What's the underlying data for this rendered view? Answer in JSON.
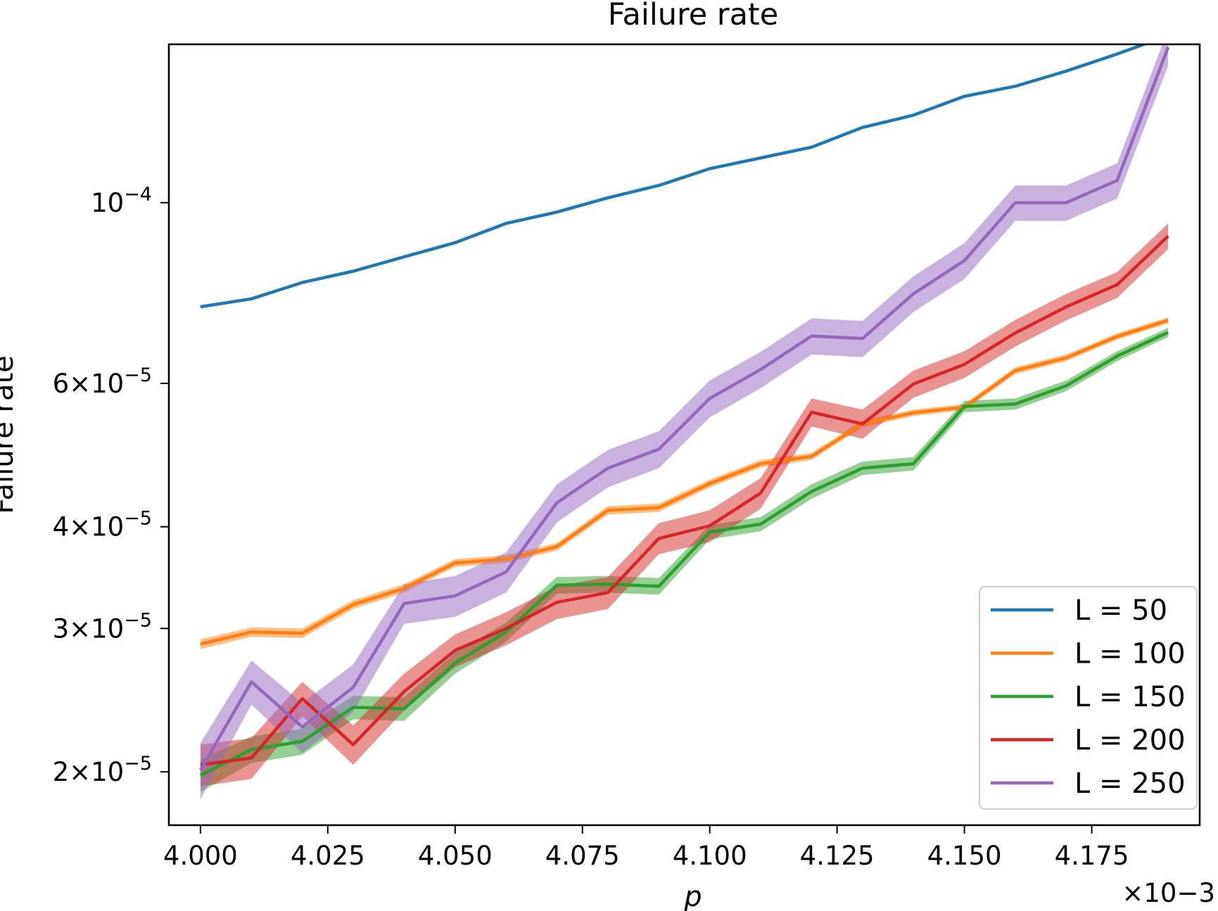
{
  "chart_data": {
    "type": "line",
    "title": "Failure rate",
    "xlabel": "p",
    "ylabel": "Failure rate",
    "x_offset_text": "×10−3",
    "yscale": "log",
    "xlim": [
      3.9938,
      4.1962
    ],
    "ylim": [
      1.72e-05,
      0.0001565
    ],
    "grid": false,
    "legend_position": "lower right",
    "x": [
      4.0,
      4.01,
      4.02,
      4.03,
      4.04,
      4.05,
      4.06,
      4.07,
      4.08,
      4.09,
      4.1,
      4.11,
      4.12,
      4.13,
      4.14,
      4.15,
      4.16,
      4.17,
      4.18,
      4.19
    ],
    "x_ticks": [
      {
        "value": 4.0,
        "label": "4.000"
      },
      {
        "value": 4.025,
        "label": "4.025"
      },
      {
        "value": 4.05,
        "label": "4.050"
      },
      {
        "value": 4.075,
        "label": "4.075"
      },
      {
        "value": 4.1,
        "label": "4.100"
      },
      {
        "value": 4.125,
        "label": "4.125"
      },
      {
        "value": 4.15,
        "label": "4.150"
      },
      {
        "value": 4.175,
        "label": "4.175"
      }
    ],
    "y_ticks": [
      {
        "value": 0.0001,
        "mantissa": "",
        "base": "10",
        "exponent": "−4"
      },
      {
        "value": 6e-05,
        "mantissa": "6",
        "base": "10",
        "exponent": "−5"
      },
      {
        "value": 4e-05,
        "mantissa": "4",
        "base": "10",
        "exponent": "−5"
      },
      {
        "value": 3e-05,
        "mantissa": "3",
        "base": "10",
        "exponent": "−5"
      },
      {
        "value": 2e-05,
        "mantissa": "2",
        "base": "10",
        "exponent": "−5"
      }
    ],
    "series": [
      {
        "name": "L = 50",
        "color": "#1f77b4",
        "values": [
          7.45e-05,
          7.62e-05,
          7.98e-05,
          8.24e-05,
          8.58e-05,
          8.93e-05,
          9.43e-05,
          9.74e-05,
          0.0001014,
          0.000105,
          0.0001101,
          0.0001135,
          0.000117,
          0.0001237,
          0.0001281,
          0.0001351,
          0.000139,
          0.0001451,
          0.0001523,
          0.0001604
        ],
        "band": [
          1e-07,
          1e-07,
          1e-07,
          1e-07,
          1e-07,
          1e-07,
          1e-07,
          1e-07,
          1e-07,
          1e-07,
          1e-07,
          1e-07,
          1e-07,
          1e-07,
          1e-07,
          1e-07,
          1e-07,
          1e-07,
          1e-07,
          1e-07
        ]
      },
      {
        "name": "L = 100",
        "color": "#ff7f0e",
        "values": [
          2.87e-05,
          2.97e-05,
          2.96e-05,
          3.21e-05,
          3.36e-05,
          3.61e-05,
          3.65e-05,
          3.78e-05,
          4.19e-05,
          4.22e-05,
          4.52e-05,
          4.78e-05,
          4.88e-05,
          5.35e-05,
          5.52e-05,
          5.61e-05,
          6.22e-05,
          6.45e-05,
          6.85e-05,
          7.17e-05
        ],
        "band": [
          4e-07,
          4e-07,
          4e-07,
          4e-07,
          4e-07,
          4e-07,
          4e-07,
          4e-07,
          5e-07,
          5e-07,
          5e-07,
          5e-07,
          5e-07,
          5e-07,
          5e-07,
          5e-07,
          6e-07,
          6e-07,
          6e-07,
          6e-07
        ]
      },
      {
        "name": "L = 150",
        "color": "#2ca02c",
        "values": [
          1.98e-05,
          2.13e-05,
          2.18e-05,
          2.4e-05,
          2.39e-05,
          2.72e-05,
          2.97e-05,
          3.39e-05,
          3.4e-05,
          3.38e-05,
          3.94e-05,
          4.03e-05,
          4.42e-05,
          4.72e-05,
          4.78e-05,
          5.62e-05,
          5.66e-05,
          5.96e-05,
          6.48e-05,
          6.93e-05
        ],
        "band": [
          9e-07,
          8e-07,
          8e-07,
          8e-07,
          8e-07,
          8e-07,
          8e-07,
          8e-07,
          8e-07,
          8e-07,
          8e-07,
          8e-07,
          9e-07,
          9e-07,
          9e-07,
          9e-07,
          9e-07,
          9e-07,
          9e-07,
          9e-07
        ]
      },
      {
        "name": "L = 200",
        "color": "#d62728",
        "values": [
          2.04e-05,
          2.08e-05,
          2.46e-05,
          2.16e-05,
          2.51e-05,
          2.82e-05,
          3e-05,
          3.23e-05,
          3.32e-05,
          3.87e-05,
          4.01e-05,
          4.4e-05,
          5.53e-05,
          5.35e-05,
          5.99e-05,
          6.33e-05,
          6.92e-05,
          7.45e-05,
          7.93e-05,
          9.1e-05
        ],
        "band": [
          1.2e-06,
          1.2e-06,
          1.2e-06,
          1.2e-06,
          1.3e-06,
          1.3e-06,
          1.4e-06,
          1.5e-06,
          1.5e-06,
          1.7e-06,
          1.8e-06,
          1.9e-06,
          2.2e-06,
          2.2e-06,
          2.3e-06,
          2.4e-06,
          2.6e-06,
          2.8e-06,
          2.9e-06,
          3.3e-06
        ]
      },
      {
        "name": "L = 250",
        "color": "#9467bd",
        "values": [
          2.01e-05,
          2.58e-05,
          2.27e-05,
          2.54e-05,
          3.22e-05,
          3.29e-05,
          3.52e-05,
          4.28e-05,
          4.72e-05,
          4.98e-05,
          5.75e-05,
          6.24e-05,
          6.86e-05,
          6.81e-05,
          7.73e-05,
          8.49e-05,
          0.0001,
          0.0001,
          0.0001065,
          0.0001552
        ],
        "band": [
          1.6e-06,
          1.6e-06,
          1.6e-06,
          1.7e-06,
          1.8e-06,
          1.9e-06,
          2e-06,
          2.3e-06,
          2.5e-06,
          2.6e-06,
          3e-06,
          3.2e-06,
          3.5e-06,
          3.5e-06,
          3.9e-06,
          4.3e-06,
          5e-06,
          5e-06,
          5.3e-06,
          8e-06
        ]
      }
    ]
  }
}
